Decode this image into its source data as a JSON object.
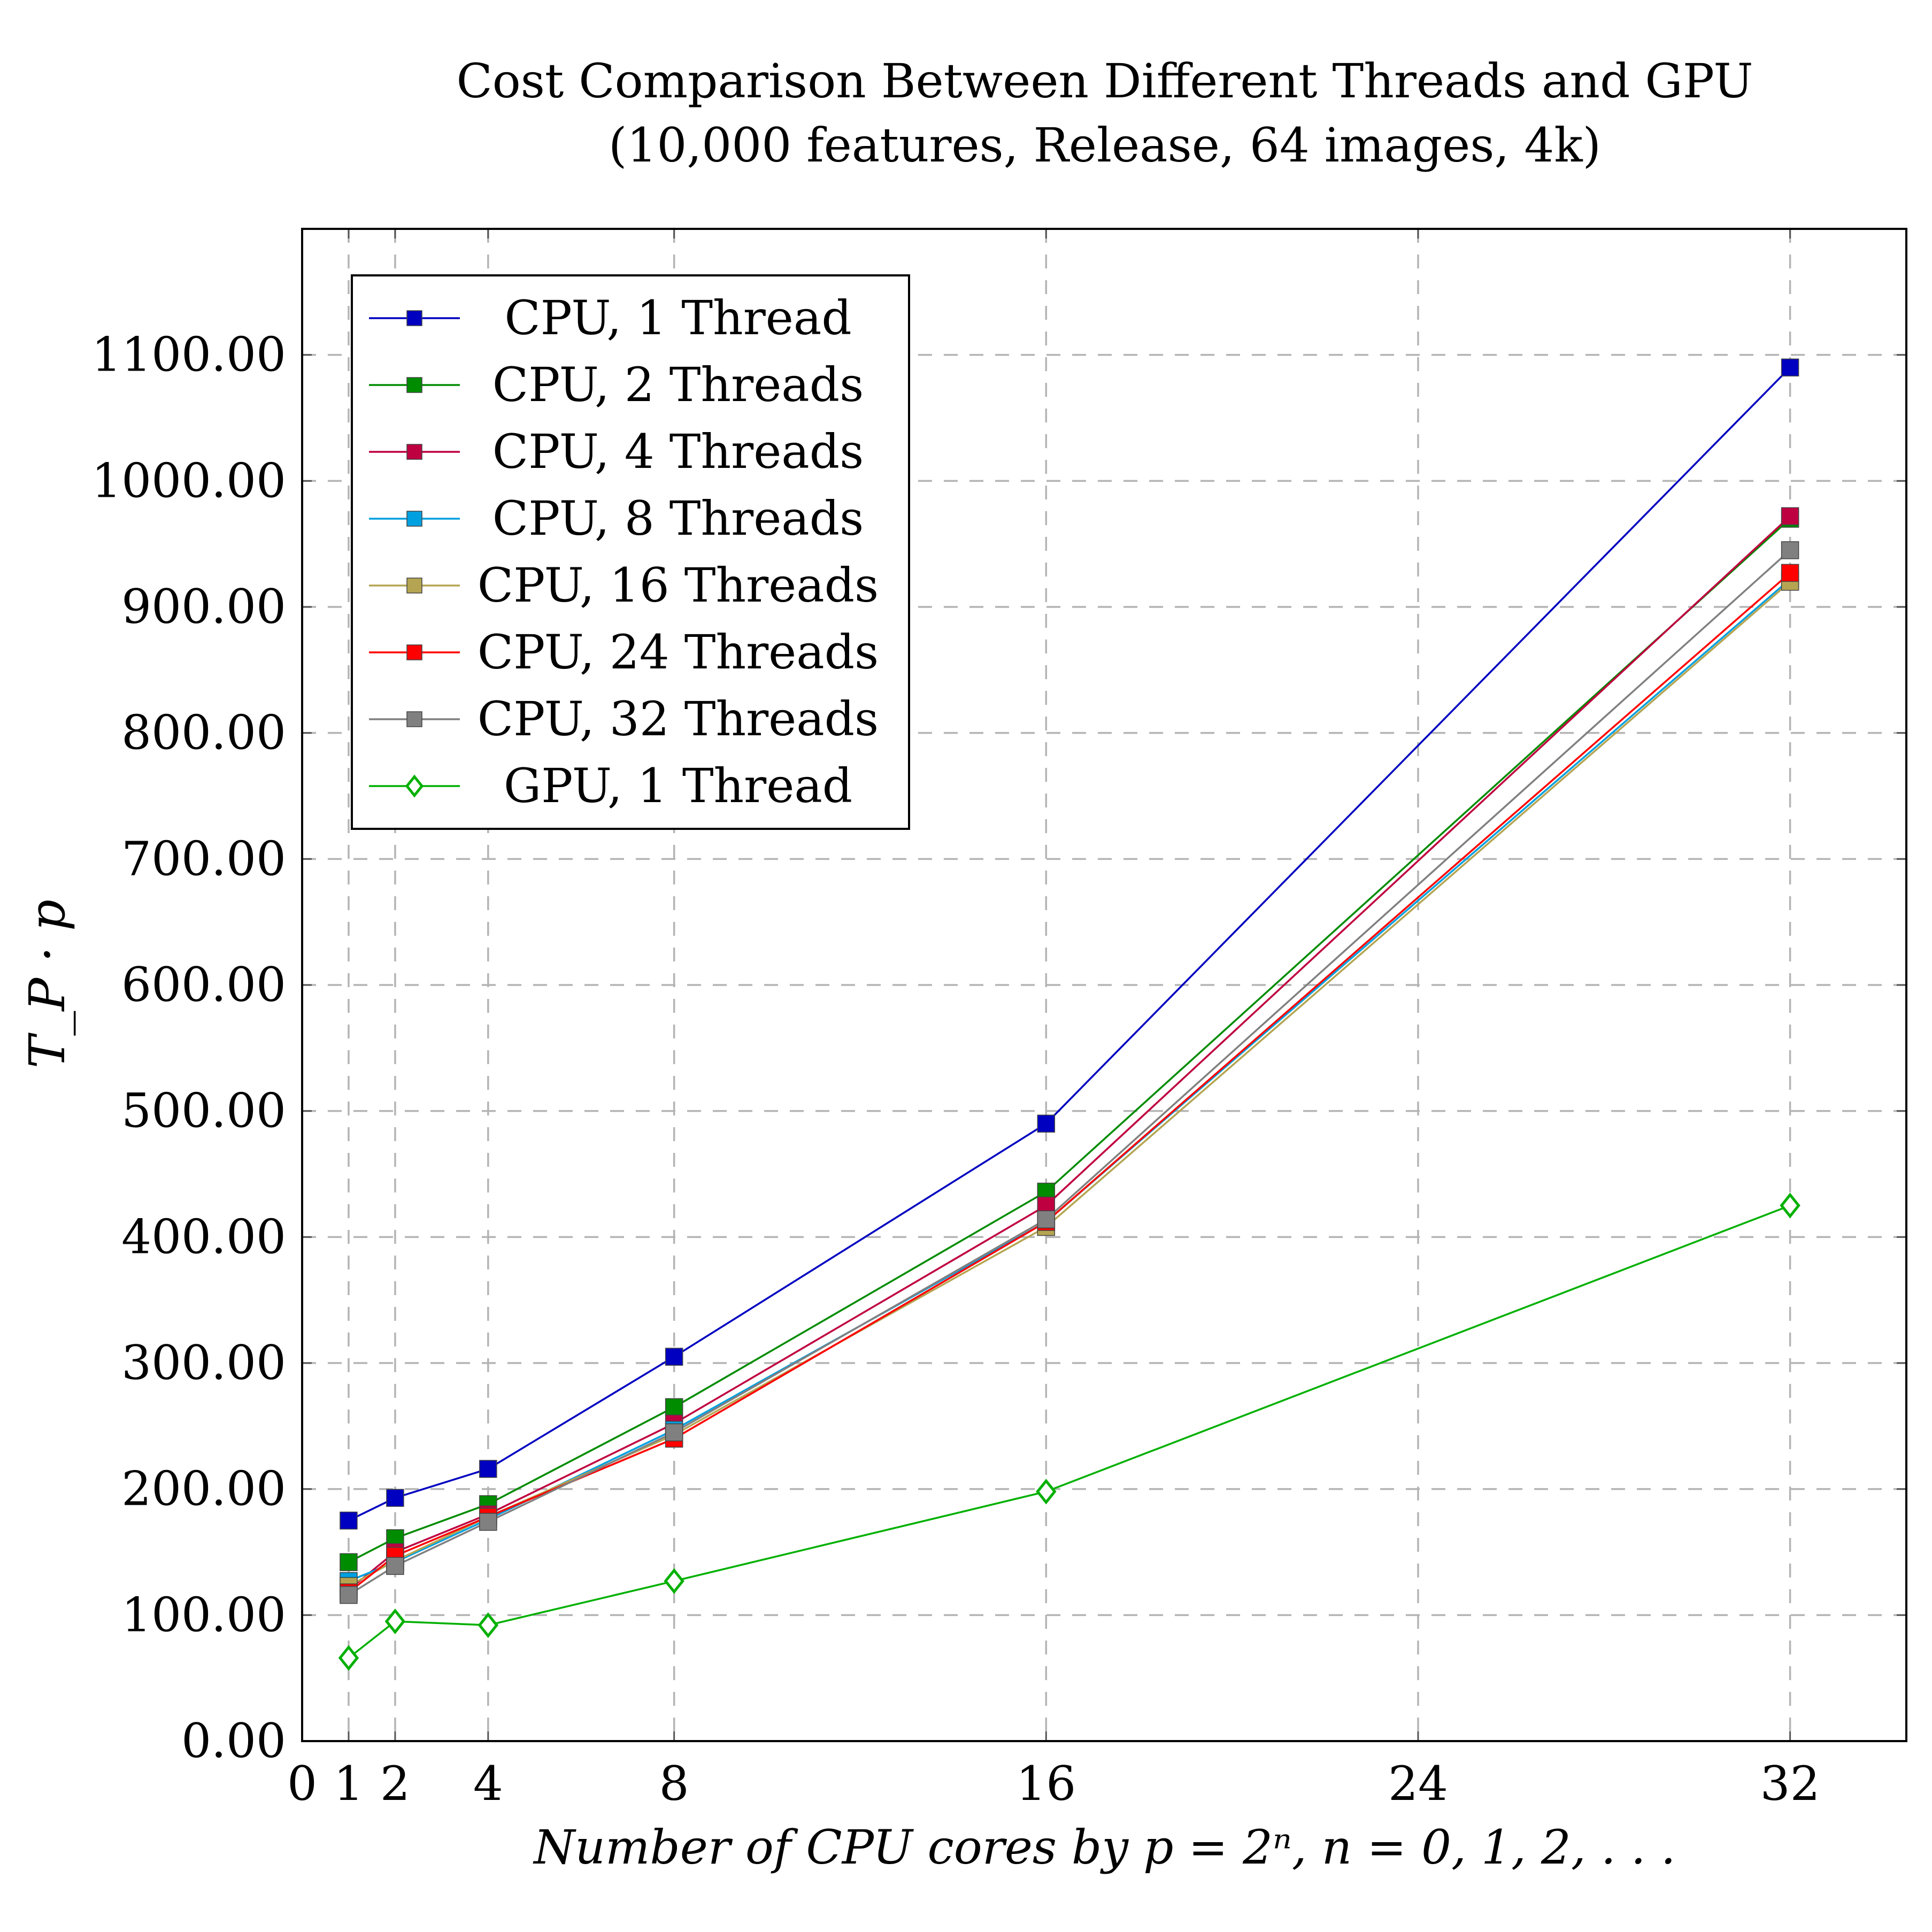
{
  "chart_data": {
    "type": "line",
    "title": "Cost Comparison Between Different Threads and GPU",
    "subtitle": "(10,000 features, Release, 64 images, 4k)",
    "xlabel": "Number of CPU cores by p = 2ⁿ, n = 0, 1, 2, . . .",
    "ylabel": "T_P · p",
    "xlim": [
      0,
      34.5
    ],
    "ylim": [
      0,
      1200
    ],
    "x_ticks": [
      0,
      1,
      2,
      4,
      8,
      16,
      24,
      32
    ],
    "y_ticks": [
      0,
      100,
      200,
      300,
      400,
      500,
      600,
      700,
      800,
      900,
      1000,
      1100
    ],
    "y_tick_labels": [
      "0.00",
      "100.00",
      "200.00",
      "300.00",
      "400.00",
      "500.00",
      "600.00",
      "700.00",
      "800.00",
      "900.00",
      "1000.00",
      "1100.00"
    ],
    "grid": true,
    "legend_position": "top-left",
    "x": [
      1,
      2,
      4,
      8,
      16,
      32
    ],
    "series": [
      {
        "name": "CPU, 1 Thread",
        "color": "#0000c0",
        "marker": "square",
        "values": [
          175,
          193,
          216,
          305,
          490,
          1090
        ]
      },
      {
        "name": "CPU, 2 Threads",
        "color": "#008c00",
        "marker": "square",
        "values": [
          142,
          161,
          188,
          265,
          436,
          970
        ]
      },
      {
        "name": "CPU, 4 Threads",
        "color": "#bf0040",
        "marker": "square",
        "values": [
          120,
          150,
          180,
          252,
          425,
          972
        ]
      },
      {
        "name": "CPU, 8 Threads",
        "color": "#00a0e0",
        "marker": "square",
        "values": [
          127,
          142,
          176,
          247,
          412,
          922
        ]
      },
      {
        "name": "CPU, 16 Threads",
        "color": "#b5a552",
        "marker": "square",
        "values": [
          123,
          143,
          178,
          243,
          408,
          920
        ]
      },
      {
        "name": "CPU, 24 Threads",
        "color": "#ff0000",
        "marker": "square",
        "values": [
          118,
          147,
          178,
          240,
          412,
          927
        ]
      },
      {
        "name": "CPU, 32 Threads",
        "color": "#808080",
        "marker": "square",
        "values": [
          116,
          139,
          174,
          245,
          414,
          945
        ]
      },
      {
        "name": "GPU, 1 Thread",
        "color": "#00b000",
        "marker": "diamond-open",
        "values": [
          66,
          95,
          92,
          127,
          198,
          425
        ]
      }
    ]
  }
}
